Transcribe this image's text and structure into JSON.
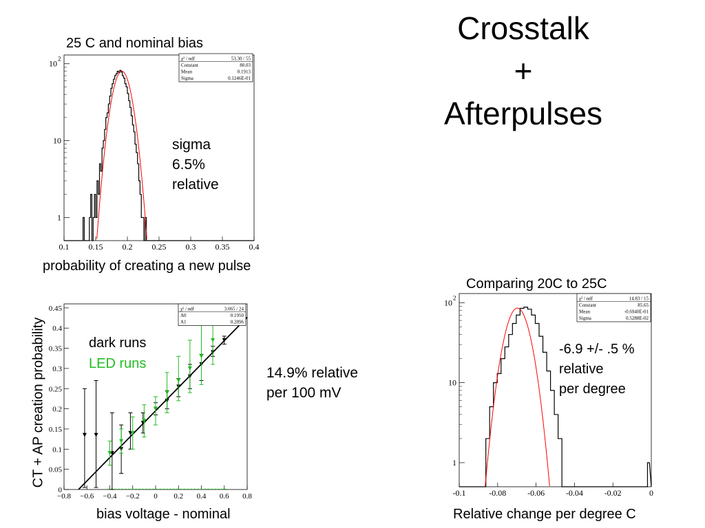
{
  "slide": {
    "title_lines": [
      "Crosstalk",
      "+",
      "Afterpulses"
    ]
  },
  "captions": {
    "top_left": "25 C and nominal bias",
    "top_left_xlabel": "probability of creating a new pulse",
    "bottom_right": "Comparing 20C to 25C",
    "bottom_right_xlabel": "Relative change per degree C",
    "bottom_left_xlabel": "bias voltage - nominal",
    "bottom_left_ylabel": "CT + AP creation probability"
  },
  "annotations": {
    "top_left_lines": [
      "sigma",
      "6.5%",
      "relative"
    ],
    "middle_lines": [
      "14.9% relative",
      "per 100 mV"
    ],
    "bottom_right_lines": [
      "-6.9 +/-  .5 %",
      "relative",
      "per degree"
    ],
    "legend_dark": "dark runs",
    "legend_led": "LED runs"
  },
  "colors": {
    "fit": "#ff0000",
    "led": "#22bb22",
    "hist": "#000000"
  },
  "chart_data": [
    {
      "type": "histogram",
      "yscale": "log",
      "xlim": [
        0.1,
        0.4
      ],
      "ylim": [
        0.5,
        130
      ],
      "xticks": [
        "0.1",
        "0.15",
        "0.2",
        "0.25",
        "0.3",
        "0.35",
        "0.4"
      ],
      "ytick_labels": [
        "1",
        "10",
        "10 2"
      ],
      "stats": [
        [
          "χ² / ndf",
          "53.30   /   55"
        ],
        [
          "Constant",
          "80.03"
        ],
        [
          "Mean",
          "0.1913"
        ],
        [
          "Sigma",
          "0.1246E-01"
        ]
      ],
      "fit": {
        "constant": 80.03,
        "mean": 0.1913,
        "sigma": 0.01246
      },
      "bin_start": 0.13,
      "bin_width": 0.002,
      "counts": [
        1,
        0,
        0,
        0,
        0,
        1,
        2,
        0,
        1,
        2,
        1,
        3,
        2,
        5,
        4,
        8,
        10,
        14,
        20,
        23,
        30,
        38,
        48,
        55,
        63,
        70,
        74,
        80,
        77,
        82,
        78,
        70,
        65,
        55,
        50,
        41,
        33,
        27,
        21,
        16,
        13,
        9,
        7,
        5,
        3,
        2,
        1,
        1,
        0,
        1
      ]
    },
    {
      "type": "scatter",
      "xlim": [
        -0.8,
        0.8
      ],
      "ylim": [
        0,
        0.46
      ],
      "xticks": [
        "−0.8",
        "−0.6",
        "−0.4",
        "−0.2",
        "0",
        "0.2",
        "0.4",
        "0.6",
        "0.8"
      ],
      "yticks": [
        "0",
        "0.05",
        "0.1",
        "0.15",
        "0.2",
        "0.25",
        "0.3",
        "0.35",
        "0.4",
        "0.45"
      ],
      "stats": [
        [
          "χ² / ndf",
          "3.065   /   24"
        ],
        [
          "A0",
          "0.1950"
        ],
        [
          "A1",
          "0.2896"
        ]
      ],
      "fit": {
        "a0": 0.195,
        "a1": 0.2896
      },
      "series": [
        {
          "points": [
            {
              "x": -0.62,
              "y": 0.135,
              "lo": 0.005,
              "hi": 0.25
            },
            {
              "x": -0.52,
              "y": 0.135,
              "lo": 0.005,
              "hi": 0.27
            },
            {
              "x": -0.38,
              "y": 0.09,
              "lo": 0.0,
              "hi": 0.19
            },
            {
              "x": -0.3,
              "y": 0.1,
              "lo": 0.04,
              "hi": 0.16
            },
            {
              "x": -0.22,
              "y": 0.14,
              "lo": 0.1,
              "hi": 0.19
            },
            {
              "x": -0.11,
              "y": 0.165,
              "lo": 0.14,
              "hi": 0.19
            },
            {
              "x": 0.0,
              "y": 0.2,
              "lo": 0.185,
              "hi": 0.215
            },
            {
              "x": 0.1,
              "y": 0.22,
              "lo": 0.2,
              "hi": 0.245
            },
            {
              "x": 0.2,
              "y": 0.255,
              "lo": 0.23,
              "hi": 0.275
            },
            {
              "x": 0.3,
              "y": 0.28,
              "lo": 0.25,
              "hi": 0.31
            },
            {
              "x": 0.4,
              "y": 0.31,
              "lo": 0.27,
              "hi": 0.335
            },
            {
              "x": 0.5,
              "y": 0.34,
              "lo": 0.33,
              "hi": 0.355
            },
            {
              "x": 0.6,
              "y": 0.37,
              "lo": 0.36,
              "hi": 0.38
            }
          ]
        },
        {
          "points": [
            {
              "x": -0.4,
              "y": 0.09,
              "lo": 0.06,
              "hi": 0.12
            },
            {
              "x": -0.3,
              "y": 0.12,
              "lo": 0.09,
              "hi": 0.15
            },
            {
              "x": -0.2,
              "y": 0.14,
              "lo": 0.1,
              "hi": 0.18
            },
            {
              "x": -0.1,
              "y": 0.17,
              "lo": 0.13,
              "hi": 0.21
            },
            {
              "x": 0.0,
              "y": 0.2,
              "lo": 0.16,
              "hi": 0.23
            },
            {
              "x": 0.1,
              "y": 0.24,
              "lo": 0.19,
              "hi": 0.29
            },
            {
              "x": 0.2,
              "y": 0.27,
              "lo": 0.22,
              "hi": 0.33
            },
            {
              "x": 0.3,
              "y": 0.3,
              "lo": 0.24,
              "hi": 0.37
            },
            {
              "x": 0.4,
              "y": 0.33,
              "lo": 0.26,
              "hi": 0.41
            },
            {
              "x": 0.5,
              "y": 0.37,
              "lo": 0.31,
              "hi": 0.43
            }
          ]
        }
      ]
    },
    {
      "type": "histogram",
      "yscale": "log",
      "xlim": [
        -0.1,
        0.001
      ],
      "ylim": [
        0.5,
        130
      ],
      "xticks": [
        "-0.1",
        "-0.08",
        "-0.06",
        "-0.04",
        "-0.02",
        "0"
      ],
      "ytick_labels": [
        "1",
        "10",
        "10 2"
      ],
      "stats": [
        [
          "χ² / ndf",
          "14.83   /   15"
        ],
        [
          "Constant",
          "85.65"
        ],
        [
          "Mean",
          "-0.6940E-01"
        ],
        [
          "Sigma",
          "0.5288E-02"
        ]
      ],
      "fit": {
        "constant": 85.65,
        "mean": -0.0694,
        "sigma": 0.005288
      },
      "bin_start": -0.086,
      "bin_width": 0.002,
      "counts": [
        2,
        5,
        10,
        13,
        20,
        28,
        40,
        55,
        70,
        85,
        88,
        83,
        70,
        55,
        38,
        24,
        14,
        8,
        4,
        2,
        0
      ],
      "extra_bins": [
        {
          "x": 0.0,
          "count": 1
        }
      ]
    }
  ]
}
